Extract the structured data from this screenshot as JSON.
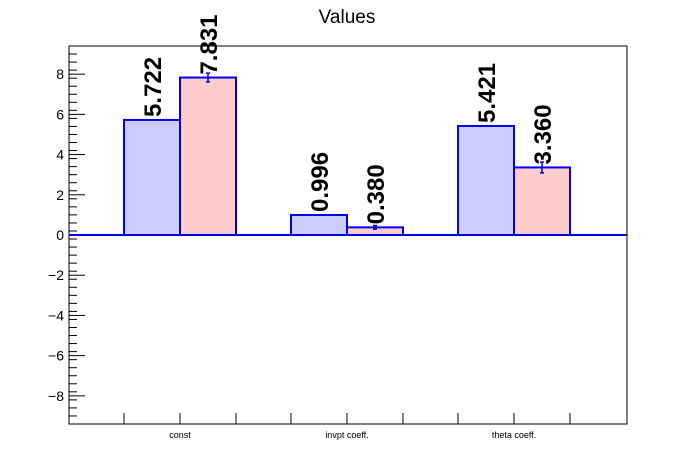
{
  "chart_data": {
    "type": "bar",
    "title": "Values",
    "xlabel": "",
    "ylabel": "",
    "ylim": [
      -9.4,
      9.4
    ],
    "yticks": [
      -8,
      -6,
      -4,
      -2,
      0,
      2,
      4,
      6,
      8
    ],
    "categories": [
      "const",
      "invpt coeff.",
      "theta coeff."
    ],
    "series": [
      {
        "values": [
          5.722,
          0.996,
          5.421
        ],
        "labels": [
          "5.722",
          "0.996",
          "5.421"
        ],
        "errors": [
          0,
          0,
          0
        ],
        "fill": "#ccccff"
      },
      {
        "values": [
          7.831,
          0.38,
          3.36
        ],
        "labels": [
          "7.831",
          "0.380",
          "3.360"
        ],
        "errors": [
          0.22,
          0.09,
          0.27
        ],
        "fill": "#ffcccc"
      }
    ],
    "grid": false,
    "colors": {
      "outline": "#0000ee",
      "axis": "#000000"
    }
  }
}
